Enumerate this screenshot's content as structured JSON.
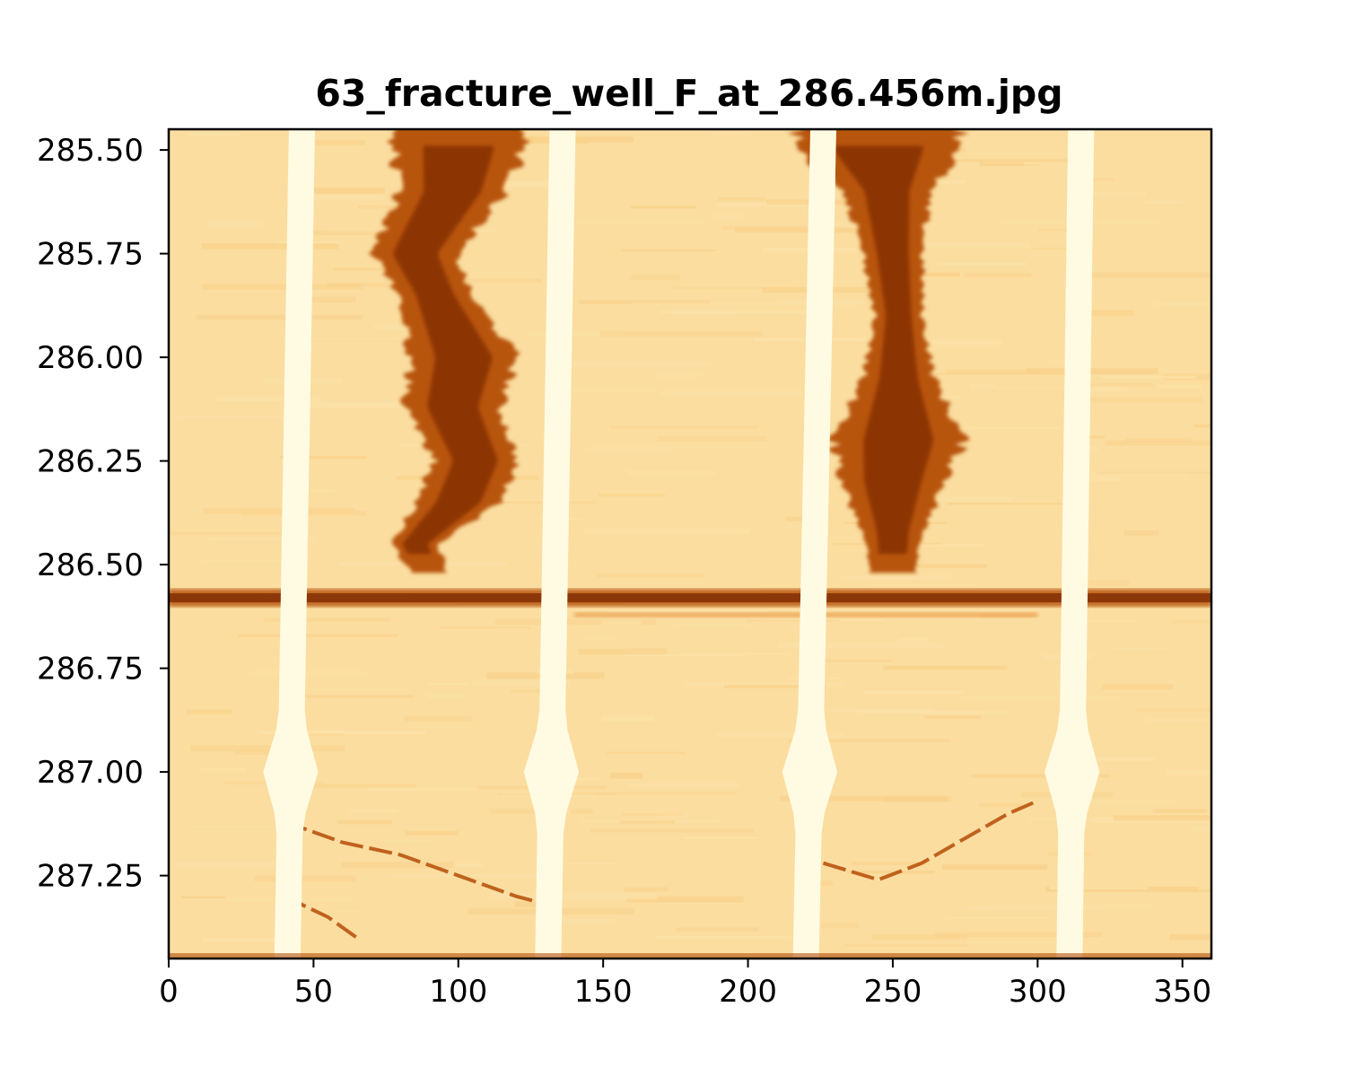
{
  "chart_data": {
    "type": "heatmap",
    "title": "63_fracture_well_F_at_286.456m.jpg",
    "xlabel": "",
    "ylabel": "",
    "xlim": [
      0,
      360
    ],
    "ylim": [
      287.45,
      285.45
    ],
    "x_ticks": [
      0,
      50,
      100,
      150,
      200,
      250,
      300,
      350
    ],
    "x_tick_labels": [
      "0",
      "50",
      "100",
      "150",
      "200",
      "250",
      "300",
      "350"
    ],
    "y_ticks": [
      285.5,
      285.75,
      286.0,
      286.25,
      286.5,
      286.75,
      287.0,
      287.25
    ],
    "y_tick_labels": [
      "285.50",
      "285.75",
      "286.00",
      "286.25",
      "286.50",
      "286.75",
      "287.00",
      "287.25"
    ],
    "grid": false,
    "colormap": [
      "#fffbe3",
      "#fde8b0",
      "#f8c878",
      "#e7913b",
      "#b8540e",
      "#7f2c02"
    ],
    "background_color": "#fbdda0",
    "pad_tracks": [
      {
        "x_top": 46,
        "x_bottom": 41,
        "bulge_depth": 287.0
      },
      {
        "x_top": 136,
        "x_bottom": 131,
        "bulge_depth": 287.0
      },
      {
        "x_top": 226,
        "x_bottom": 220,
        "bulge_depth": 287.0
      },
      {
        "x_top": 315,
        "x_bottom": 311,
        "bulge_depth": 287.0
      }
    ],
    "fracture_depth": 286.58,
    "dark_zones": [
      {
        "center": [
          [
            285.5,
            100
          ],
          [
            285.6,
            98
          ],
          [
            285.75,
            85
          ],
          [
            285.85,
            92
          ],
          [
            286.0,
            102
          ],
          [
            286.12,
            98
          ],
          [
            286.25,
            106
          ],
          [
            286.35,
            100
          ],
          [
            286.45,
            85
          ],
          [
            286.52,
            90
          ]
        ],
        "halfwidth": [
          [
            285.5,
            22
          ],
          [
            285.6,
            18
          ],
          [
            285.75,
            14
          ],
          [
            285.85,
            12
          ],
          [
            286.0,
            18
          ],
          [
            286.12,
            16
          ],
          [
            286.25,
            14
          ],
          [
            286.35,
            14
          ],
          [
            286.45,
            8
          ],
          [
            286.52,
            6
          ]
        ]
      },
      {
        "center": [
          [
            285.5,
            245
          ],
          [
            285.6,
            248
          ],
          [
            285.75,
            250
          ],
          [
            285.9,
            252
          ],
          [
            286.05,
            252
          ],
          [
            286.2,
            252
          ],
          [
            286.3,
            250
          ],
          [
            286.42,
            250
          ],
          [
            286.52,
            250
          ]
        ],
        "halfwidth": [
          [
            285.5,
            28
          ],
          [
            285.6,
            14
          ],
          [
            285.75,
            10
          ],
          [
            285.9,
            8
          ],
          [
            286.05,
            12
          ],
          [
            286.2,
            22
          ],
          [
            286.3,
            18
          ],
          [
            286.42,
            10
          ],
          [
            286.52,
            8
          ]
        ]
      }
    ],
    "sinusoid_traces": [
      [
        [
          40,
          287.12
        ],
        [
          60,
          287.17
        ],
        [
          80,
          287.2
        ],
        [
          100,
          287.25
        ],
        [
          120,
          287.3
        ],
        [
          131,
          287.32
        ]
      ],
      [
        [
          226,
          287.22
        ],
        [
          245,
          287.26
        ],
        [
          260,
          287.22
        ],
        [
          275,
          287.16
        ],
        [
          290,
          287.1
        ],
        [
          300,
          287.07
        ]
      ],
      [
        [
          40,
          287.3
        ],
        [
          55,
          287.35
        ],
        [
          65,
          287.4
        ]
      ]
    ]
  }
}
